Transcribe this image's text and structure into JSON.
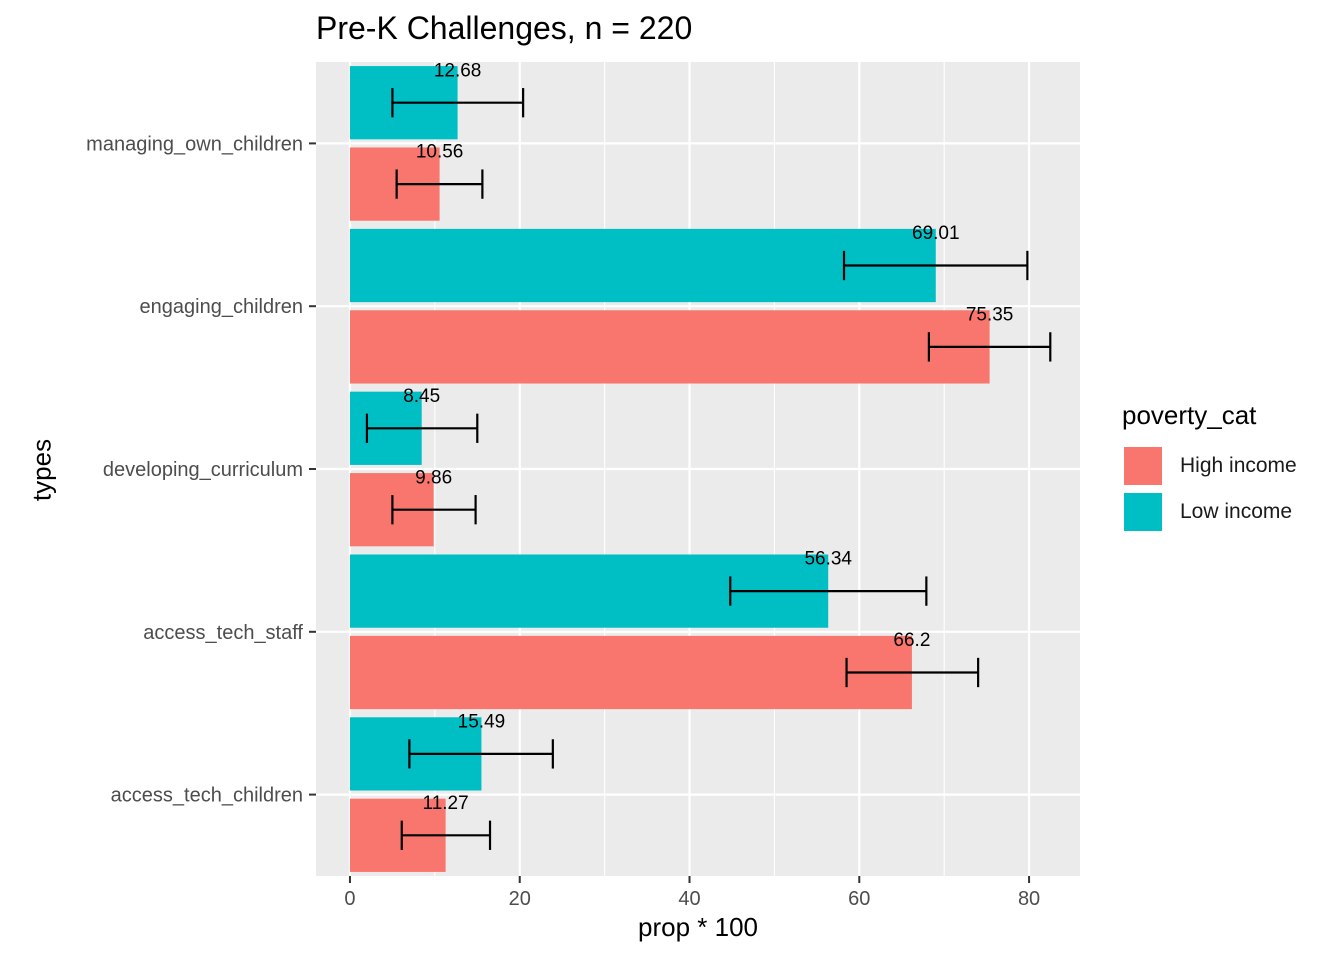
{
  "chart_data": {
    "type": "bar",
    "orientation": "horizontal",
    "title": "Pre-K Challenges, n = 220",
    "xlabel": "prop * 100",
    "ylabel": "types",
    "xlim": [
      -4,
      86
    ],
    "xticks": [
      0,
      20,
      40,
      60,
      80
    ],
    "grid": true,
    "legend": {
      "title": "poverty_cat",
      "position": "right",
      "entries": [
        "High income",
        "Low income"
      ]
    },
    "categories": [
      "managing_own_children",
      "engaging_children",
      "developing_curriculum",
      "access_tech_staff",
      "access_tech_children"
    ],
    "series": [
      {
        "name": "High income",
        "color": "#F8766D",
        "values": [
          10.56,
          75.35,
          9.86,
          66.2,
          11.27
        ],
        "labels": [
          "10.56",
          "75.35",
          "9.86",
          "66.2",
          "11.27"
        ],
        "error_low": [
          5.5,
          68.2,
          5.0,
          58.5,
          6.1
        ],
        "error_high": [
          15.6,
          82.5,
          14.8,
          74.0,
          16.5
        ]
      },
      {
        "name": "Low income",
        "color": "#00BFC4",
        "values": [
          12.68,
          69.01,
          8.45,
          56.34,
          15.49
        ],
        "labels": [
          "12.68",
          "69.01",
          "8.45",
          "56.34",
          "15.49"
        ],
        "error_low": [
          5.0,
          58.2,
          2.0,
          44.8,
          7.0
        ],
        "error_high": [
          20.4,
          79.8,
          15.0,
          67.9,
          23.9
        ]
      }
    ]
  }
}
